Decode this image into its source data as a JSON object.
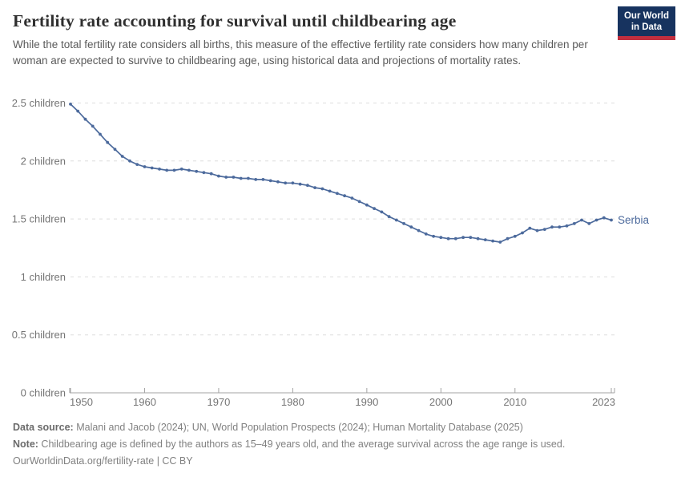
{
  "header": {
    "title": "Fertility rate accounting for survival until childbearing age",
    "subtitle": "While the total fertility rate considers all births, this measure of the effective fertility rate considers how many children per woman are expected to survive to childbearing age, using historical data and projections of mortality rates.",
    "logo": {
      "line1": "Our World",
      "line2": "in Data"
    }
  },
  "chart_data": {
    "type": "line",
    "title": "Fertility rate accounting for survival until childbearing age",
    "xlabel": "",
    "ylabel": "children",
    "xlim": [
      1950,
      2023
    ],
    "ylim": [
      0,
      2.5
    ],
    "grid": "horizontal-dashed",
    "legend_position": "end-of-line-label",
    "xticks": [
      1950,
      1960,
      1970,
      1980,
      1990,
      2000,
      2010,
      2023
    ],
    "yticks": [
      {
        "value": 0,
        "label": "0 children"
      },
      {
        "value": 0.5,
        "label": "0.5 children"
      },
      {
        "value": 1,
        "label": "1 children"
      },
      {
        "value": 1.5,
        "label": "1.5 children"
      },
      {
        "value": 2,
        "label": "2 children"
      },
      {
        "value": 2.5,
        "label": "2.5 children"
      }
    ],
    "series": [
      {
        "name": "Serbia",
        "color": "#4c6a9c",
        "x": [
          1950,
          1951,
          1952,
          1953,
          1954,
          1955,
          1956,
          1957,
          1958,
          1959,
          1960,
          1961,
          1962,
          1963,
          1964,
          1965,
          1966,
          1967,
          1968,
          1969,
          1970,
          1971,
          1972,
          1973,
          1974,
          1975,
          1976,
          1977,
          1978,
          1979,
          1980,
          1981,
          1982,
          1983,
          1984,
          1985,
          1986,
          1987,
          1988,
          1989,
          1990,
          1991,
          1992,
          1993,
          1994,
          1995,
          1996,
          1997,
          1998,
          1999,
          2000,
          2001,
          2002,
          2003,
          2004,
          2005,
          2006,
          2007,
          2008,
          2009,
          2010,
          2011,
          2012,
          2013,
          2014,
          2015,
          2016,
          2017,
          2018,
          2019,
          2020,
          2021,
          2022,
          2023
        ],
        "values": [
          2.49,
          2.43,
          2.36,
          2.3,
          2.23,
          2.16,
          2.1,
          2.04,
          2.0,
          1.97,
          1.95,
          1.94,
          1.93,
          1.92,
          1.92,
          1.93,
          1.92,
          1.91,
          1.9,
          1.89,
          1.87,
          1.86,
          1.86,
          1.85,
          1.85,
          1.84,
          1.84,
          1.83,
          1.82,
          1.81,
          1.81,
          1.8,
          1.79,
          1.77,
          1.76,
          1.74,
          1.72,
          1.7,
          1.68,
          1.65,
          1.62,
          1.59,
          1.56,
          1.52,
          1.49,
          1.46,
          1.43,
          1.4,
          1.37,
          1.35,
          1.34,
          1.33,
          1.33,
          1.34,
          1.34,
          1.33,
          1.32,
          1.31,
          1.3,
          1.33,
          1.35,
          1.38,
          1.42,
          1.4,
          1.41,
          1.43,
          1.43,
          1.44,
          1.46,
          1.49,
          1.46,
          1.49,
          1.51,
          1.49
        ]
      }
    ],
    "entity_label": "Serbia"
  },
  "footer": {
    "datasource_label": "Data source:",
    "datasource_text": " Malani and Jacob (2024); UN, World Population Prospects (2024); Human Mortality Database (2025)",
    "note_label": "Note:",
    "note_text": " Childbearing age is defined by the authors as 15–49 years old, and the average survival across the age range is used.",
    "license": "OurWorldinData.org/fertility-rate | CC BY"
  },
  "colors": {
    "line": "#4c6a9c",
    "entity_label": "#4c6a9c",
    "grid": "#dddddd",
    "axis": "#a3a3a3",
    "tick_text": "#757575",
    "logo_bg": "#17335f",
    "logo_red": "#c22f3f"
  }
}
